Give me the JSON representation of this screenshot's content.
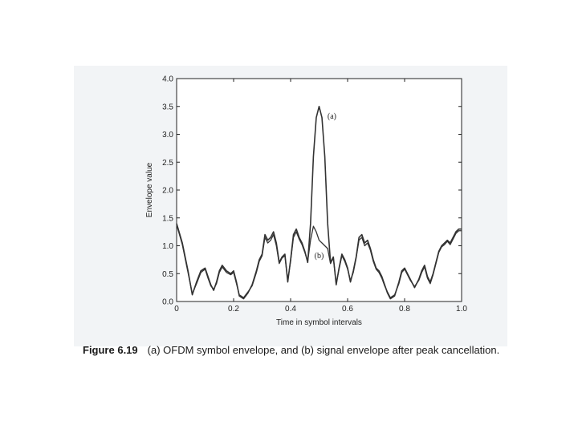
{
  "caption": {
    "figure_number": "Figure 6.19",
    "text": "(a) OFDM symbol envelope, and (b) signal envelope after peak cancellation."
  },
  "chart_data": {
    "type": "line",
    "title": "",
    "xlabel": "Time in symbol intervals",
    "ylabel": "Envelope value",
    "xlim": [
      0,
      1.0
    ],
    "ylim": [
      0,
      4.0
    ],
    "xticks": [
      "0",
      "0.2",
      "0.4",
      "0.6",
      "0.8",
      "1.0"
    ],
    "yticks": [
      "0.0",
      "0.5",
      "1.0",
      "1.5",
      "2.0",
      "2.5",
      "3.0",
      "3.5",
      "4.0"
    ],
    "grid": false,
    "line_color": "#333333",
    "series": [
      {
        "name": "(a)",
        "x": [
          0.0,
          0.02,
          0.04,
          0.055,
          0.07,
          0.085,
          0.1,
          0.11,
          0.12,
          0.13,
          0.14,
          0.15,
          0.16,
          0.175,
          0.19,
          0.2,
          0.21,
          0.22,
          0.235,
          0.25,
          0.265,
          0.28,
          0.29,
          0.3,
          0.31,
          0.32,
          0.33,
          0.34,
          0.35,
          0.36,
          0.37,
          0.38,
          0.39,
          0.4,
          0.41,
          0.42,
          0.43,
          0.44,
          0.45,
          0.46,
          0.47,
          0.48,
          0.49,
          0.5,
          0.51,
          0.52,
          0.53,
          0.54,
          0.55,
          0.56,
          0.57,
          0.58,
          0.59,
          0.6,
          0.61,
          0.62,
          0.63,
          0.64,
          0.65,
          0.66,
          0.67,
          0.68,
          0.69,
          0.7,
          0.71,
          0.72,
          0.73,
          0.74,
          0.75,
          0.765,
          0.78,
          0.79,
          0.8,
          0.81,
          0.82,
          0.835,
          0.85,
          0.86,
          0.87,
          0.88,
          0.89,
          0.9,
          0.91,
          0.92,
          0.93,
          0.94,
          0.95,
          0.96,
          0.97,
          0.98,
          0.99,
          1.0
        ],
        "y": [
          1.4,
          1.05,
          0.55,
          0.12,
          0.35,
          0.55,
          0.6,
          0.45,
          0.3,
          0.2,
          0.35,
          0.55,
          0.65,
          0.55,
          0.5,
          0.55,
          0.35,
          0.1,
          0.05,
          0.15,
          0.3,
          0.55,
          0.75,
          0.85,
          1.2,
          1.1,
          1.15,
          1.25,
          1.05,
          0.7,
          0.8,
          0.85,
          0.35,
          0.75,
          1.2,
          1.3,
          1.15,
          1.05,
          0.9,
          0.7,
          1.4,
          2.6,
          3.3,
          3.5,
          3.3,
          2.6,
          1.4,
          0.7,
          0.8,
          0.3,
          0.6,
          0.85,
          0.75,
          0.6,
          0.35,
          0.55,
          0.8,
          1.15,
          1.2,
          1.05,
          1.1,
          0.95,
          0.75,
          0.6,
          0.55,
          0.45,
          0.3,
          0.15,
          0.05,
          0.1,
          0.35,
          0.55,
          0.6,
          0.5,
          0.4,
          0.25,
          0.4,
          0.55,
          0.65,
          0.45,
          0.35,
          0.5,
          0.7,
          0.9,
          1.0,
          1.05,
          1.1,
          1.05,
          1.15,
          1.25,
          1.3,
          1.3
        ]
      },
      {
        "name": "(b)",
        "x": [
          0.0,
          0.02,
          0.04,
          0.055,
          0.07,
          0.085,
          0.1,
          0.11,
          0.12,
          0.13,
          0.14,
          0.15,
          0.16,
          0.175,
          0.19,
          0.2,
          0.21,
          0.22,
          0.235,
          0.25,
          0.265,
          0.28,
          0.29,
          0.3,
          0.31,
          0.32,
          0.33,
          0.34,
          0.35,
          0.36,
          0.37,
          0.38,
          0.39,
          0.4,
          0.41,
          0.42,
          0.43,
          0.44,
          0.45,
          0.46,
          0.47,
          0.48,
          0.49,
          0.5,
          0.51,
          0.52,
          0.53,
          0.54,
          0.55,
          0.56,
          0.57,
          0.58,
          0.59,
          0.6,
          0.61,
          0.62,
          0.63,
          0.64,
          0.65,
          0.66,
          0.67,
          0.68,
          0.69,
          0.7,
          0.71,
          0.72,
          0.73,
          0.74,
          0.75,
          0.765,
          0.78,
          0.79,
          0.8,
          0.81,
          0.82,
          0.835,
          0.85,
          0.86,
          0.87,
          0.88,
          0.89,
          0.9,
          0.91,
          0.92,
          0.93,
          0.94,
          0.95,
          0.96,
          0.97,
          0.98,
          0.99,
          1.0
        ],
        "y": [
          1.38,
          1.02,
          0.52,
          0.14,
          0.32,
          0.52,
          0.58,
          0.42,
          0.28,
          0.22,
          0.32,
          0.52,
          0.62,
          0.52,
          0.48,
          0.52,
          0.32,
          0.12,
          0.07,
          0.17,
          0.28,
          0.52,
          0.72,
          0.82,
          1.15,
          1.05,
          1.1,
          1.2,
          1.0,
          0.68,
          0.78,
          0.82,
          0.38,
          0.72,
          1.15,
          1.25,
          1.12,
          1.02,
          0.88,
          0.72,
          1.1,
          1.35,
          1.25,
          1.1,
          1.05,
          1.0,
          0.95,
          0.68,
          0.78,
          0.32,
          0.58,
          0.82,
          0.72,
          0.58,
          0.38,
          0.52,
          0.78,
          1.1,
          1.15,
          1.0,
          1.05,
          0.92,
          0.72,
          0.58,
          0.52,
          0.42,
          0.28,
          0.17,
          0.07,
          0.12,
          0.32,
          0.52,
          0.58,
          0.48,
          0.38,
          0.27,
          0.38,
          0.52,
          0.62,
          0.42,
          0.32,
          0.48,
          0.68,
          0.88,
          0.98,
          1.02,
          1.08,
          1.02,
          1.12,
          1.22,
          1.27,
          1.27
        ]
      }
    ],
    "annotations": [
      {
        "text": "(a)",
        "x": 0.545,
        "y": 3.28
      },
      {
        "text": "(b)",
        "x": 0.5,
        "y": 0.78
      }
    ]
  }
}
